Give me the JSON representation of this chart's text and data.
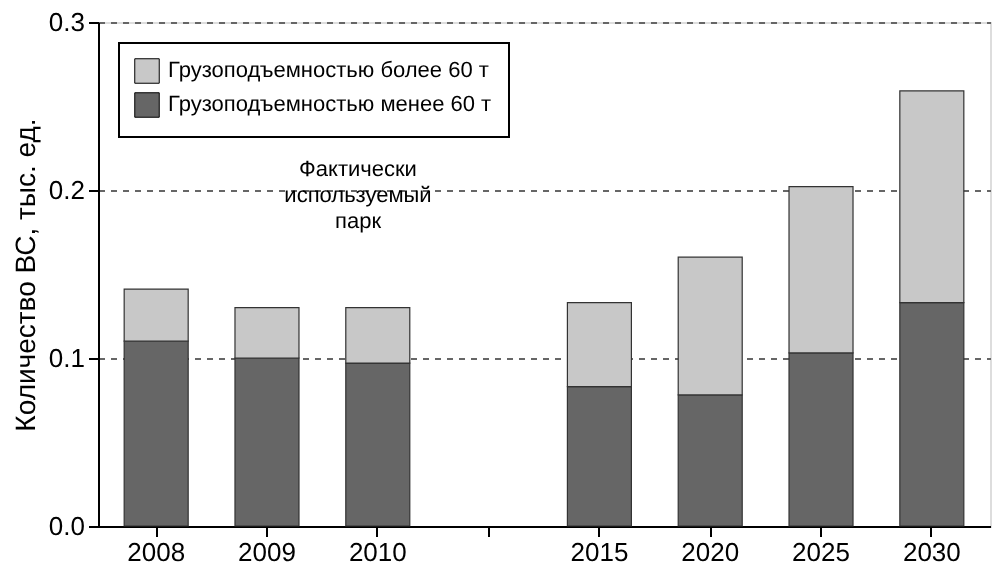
{
  "chart_data": {
    "type": "bar",
    "stacked": true,
    "ylabel": "Количество ВС, тыс. ед.",
    "categories": [
      "2008",
      "2009",
      "2010",
      null,
      "2015",
      "2020",
      "2025",
      "2030"
    ],
    "series": [
      {
        "name": "Грузоподъемностью менее 60 т",
        "color": "#666666",
        "values": [
          0.11,
          0.1,
          0.097,
          null,
          0.083,
          0.078,
          0.103,
          0.133
        ]
      },
      {
        "name": "Грузоподъемностью более 60 т",
        "color": "#c8c8c8",
        "values": [
          0.031,
          0.03,
          0.033,
          null,
          0.05,
          0.082,
          0.099,
          0.126
        ]
      }
    ],
    "ylim": [
      0,
      0.3
    ],
    "yticks": [
      {
        "value": 0,
        "label": "0.0"
      },
      0.1,
      0.2,
      0.3
    ],
    "grid": "y",
    "legend": "top left",
    "annotations": [
      "Фактически используемый парк"
    ]
  }
}
